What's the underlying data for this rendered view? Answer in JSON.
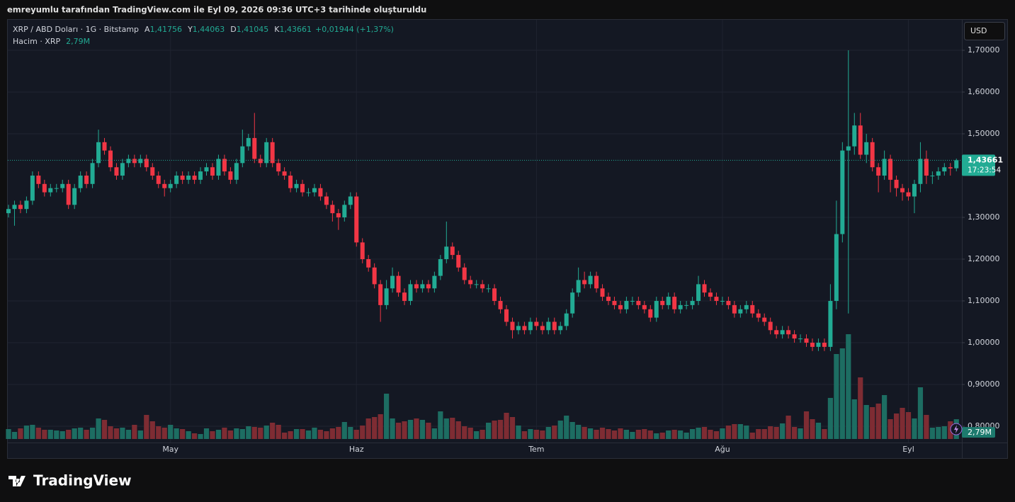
{
  "caption": "emreyumlu tarafından TradingView.com ile Eyl 09, 2026 09:36 UTC+3 tarihinde oluşturuldu",
  "brand": "TradingView",
  "currency_button": "USD",
  "chart_data": {
    "type": "candlestick",
    "title": "XRP / ABD Doları · 1G · Bitstamp",
    "ohlc_legend": [
      {
        "key": "A",
        "label": "1,41756"
      },
      {
        "key": "Y",
        "label": "1,44063"
      },
      {
        "key": "D",
        "label": "1,41045"
      },
      {
        "key": "K",
        "label": "1,43661"
      }
    ],
    "change_label": "+0,01944 (+1,37%)",
    "volume_title": "Hacim · XRP",
    "volume_label": "2,79M",
    "colors": {
      "up": "#22ab94",
      "down": "#f23645",
      "up_volume": "#1d6d62",
      "down_volume": "#7e2c33"
    },
    "categories": [
      null,
      null,
      null,
      null,
      null,
      null,
      null,
      null,
      null,
      null,
      null,
      null,
      null,
      null,
      null,
      null,
      null,
      null,
      null,
      null,
      null,
      null,
      null,
      null,
      null,
      null,
      null,
      "May",
      null,
      null,
      null,
      null,
      null,
      null,
      null,
      null,
      null,
      null,
      null,
      null,
      null,
      null,
      null,
      null,
      null,
      null,
      null,
      null,
      null,
      null,
      null,
      null,
      null,
      null,
      null,
      null,
      null,
      null,
      "Haz",
      null,
      null,
      null,
      null,
      null,
      null,
      null,
      null,
      null,
      null,
      null,
      null,
      null,
      null,
      null,
      null,
      null,
      null,
      null,
      null,
      null,
      null,
      null,
      null,
      null,
      null,
      null,
      null,
      null,
      "Tem",
      null,
      null,
      null,
      null,
      null,
      null,
      null,
      null,
      null,
      null,
      null,
      null,
      null,
      null,
      null,
      null,
      null,
      null,
      null,
      null,
      null,
      null,
      null,
      null,
      null,
      null,
      null,
      null,
      null,
      null,
      "Ağu",
      null,
      null,
      null,
      null,
      null,
      null,
      null,
      null,
      null,
      null,
      null,
      null,
      null,
      null,
      null,
      null,
      null,
      null,
      null,
      null,
      null,
      null,
      null,
      null,
      null,
      null,
      null,
      null,
      null,
      null,
      "Eyl",
      null,
      null,
      null,
      null,
      null,
      null,
      null,
      null
    ],
    "open": [
      1.31,
      1.32,
      1.33,
      1.32,
      1.34,
      1.4,
      1.38,
      1.36,
      1.37,
      1.37,
      1.38,
      1.33,
      1.37,
      1.4,
      1.38,
      1.43,
      1.48,
      1.46,
      1.42,
      1.4,
      1.43,
      1.44,
      1.43,
      1.44,
      1.42,
      1.4,
      1.38,
      1.37,
      1.38,
      1.4,
      1.39,
      1.4,
      1.39,
      1.41,
      1.42,
      1.4,
      1.44,
      1.41,
      1.39,
      1.43,
      1.47,
      1.49,
      1.44,
      1.43,
      1.48,
      1.43,
      1.41,
      1.4,
      1.37,
      1.38,
      1.36,
      1.36,
      1.37,
      1.35,
      1.33,
      1.31,
      1.3,
      1.33,
      1.35,
      1.24,
      1.2,
      1.18,
      1.14,
      1.09,
      1.13,
      1.16,
      1.12,
      1.1,
      1.14,
      1.13,
      1.14,
      1.13,
      1.16,
      1.2,
      1.23,
      1.21,
      1.18,
      1.15,
      1.14,
      1.14,
      1.13,
      1.13,
      1.1,
      1.08,
      1.05,
      1.03,
      1.04,
      1.03,
      1.05,
      1.04,
      1.03,
      1.05,
      1.03,
      1.04,
      1.07,
      1.12,
      1.15,
      1.14,
      1.16,
      1.13,
      1.11,
      1.1,
      1.09,
      1.08,
      1.1,
      1.1,
      1.09,
      1.08,
      1.06,
      1.1,
      1.09,
      1.11,
      1.08,
      1.09,
      1.09,
      1.1,
      1.14,
      1.12,
      1.11,
      1.1,
      1.1,
      1.09,
      1.07,
      1.08,
      1.09,
      1.07,
      1.06,
      1.05,
      1.03,
      1.02,
      1.03,
      1.02,
      1.01,
      1.01,
      1.0,
      0.99,
      1.0,
      0.99,
      1.1,
      1.26,
      1.46,
      1.47,
      1.52,
      1.45,
      1.48,
      1.42,
      1.4,
      1.44,
      1.39,
      1.37,
      1.36,
      1.35,
      1.38,
      1.44,
      1.4,
      1.4,
      1.41,
      1.42,
      1.41756
    ],
    "high": [
      1.33,
      1.34,
      1.34,
      1.35,
      1.41,
      1.41,
      1.39,
      1.38,
      1.38,
      1.39,
      1.39,
      1.38,
      1.41,
      1.41,
      1.44,
      1.51,
      1.49,
      1.47,
      1.43,
      1.44,
      1.45,
      1.45,
      1.45,
      1.45,
      1.43,
      1.41,
      1.39,
      1.39,
      1.41,
      1.41,
      1.41,
      1.41,
      1.42,
      1.43,
      1.43,
      1.45,
      1.45,
      1.42,
      1.44,
      1.51,
      1.5,
      1.55,
      1.45,
      1.49,
      1.49,
      1.44,
      1.42,
      1.41,
      1.39,
      1.39,
      1.37,
      1.38,
      1.38,
      1.36,
      1.34,
      1.32,
      1.34,
      1.36,
      1.36,
      1.25,
      1.21,
      1.19,
      1.15,
      1.15,
      1.18,
      1.17,
      1.13,
      1.15,
      1.15,
      1.15,
      1.15,
      1.17,
      1.21,
      1.29,
      1.24,
      1.22,
      1.19,
      1.16,
      1.15,
      1.15,
      1.14,
      1.14,
      1.11,
      1.09,
      1.06,
      1.05,
      1.05,
      1.06,
      1.06,
      1.05,
      1.06,
      1.06,
      1.05,
      1.08,
      1.13,
      1.18,
      1.17,
      1.17,
      1.17,
      1.14,
      1.12,
      1.11,
      1.1,
      1.11,
      1.11,
      1.11,
      1.1,
      1.09,
      1.11,
      1.11,
      1.12,
      1.12,
      1.1,
      1.1,
      1.11,
      1.16,
      1.15,
      1.13,
      1.12,
      1.11,
      1.11,
      1.1,
      1.09,
      1.1,
      1.1,
      1.08,
      1.07,
      1.06,
      1.04,
      1.04,
      1.04,
      1.03,
      1.02,
      1.02,
      1.01,
      1.01,
      1.01,
      1.14,
      1.34,
      1.48,
      1.7,
      1.55,
      1.55,
      1.5,
      1.49,
      1.43,
      1.46,
      1.45,
      1.4,
      1.38,
      1.37,
      1.39,
      1.48,
      1.46,
      1.41,
      1.42,
      1.43,
      1.43,
      1.44063
    ],
    "low": [
      1.3,
      1.28,
      1.31,
      1.31,
      1.33,
      1.37,
      1.35,
      1.35,
      1.36,
      1.36,
      1.32,
      1.32,
      1.36,
      1.37,
      1.37,
      1.42,
      1.45,
      1.41,
      1.39,
      1.39,
      1.42,
      1.42,
      1.42,
      1.41,
      1.39,
      1.37,
      1.35,
      1.36,
      1.37,
      1.38,
      1.38,
      1.38,
      1.38,
      1.4,
      1.39,
      1.39,
      1.4,
      1.38,
      1.38,
      1.42,
      1.46,
      1.43,
      1.42,
      1.42,
      1.42,
      1.4,
      1.39,
      1.36,
      1.36,
      1.35,
      1.35,
      1.35,
      1.34,
      1.32,
      1.29,
      1.27,
      1.29,
      1.32,
      1.23,
      1.19,
      1.17,
      1.13,
      1.05,
      1.08,
      1.12,
      1.11,
      1.09,
      1.09,
      1.12,
      1.12,
      1.12,
      1.12,
      1.15,
      1.19,
      1.2,
      1.17,
      1.14,
      1.13,
      1.13,
      1.12,
      1.12,
      1.09,
      1.07,
      1.04,
      1.01,
      1.02,
      1.02,
      1.02,
      1.03,
      1.02,
      1.02,
      1.02,
      1.02,
      1.03,
      1.06,
      1.11,
      1.13,
      1.13,
      1.12,
      1.1,
      1.09,
      1.08,
      1.07,
      1.07,
      1.09,
      1.08,
      1.07,
      1.05,
      1.05,
      1.08,
      1.08,
      1.07,
      1.07,
      1.08,
      1.08,
      1.09,
      1.11,
      1.1,
      1.09,
      1.09,
      1.08,
      1.06,
      1.06,
      1.07,
      1.06,
      1.05,
      1.04,
      1.02,
      1.01,
      1.01,
      1.01,
      1.0,
      1.0,
      0.99,
      0.98,
      0.98,
      0.98,
      0.98,
      1.08,
      1.24,
      1.07,
      1.45,
      1.44,
      1.43,
      1.41,
      1.36,
      1.39,
      1.36,
      1.35,
      1.34,
      1.34,
      1.31,
      1.36,
      1.38,
      1.38,
      1.39,
      1.4,
      1.4,
      1.41045
    ],
    "close": [
      1.32,
      1.33,
      1.32,
      1.34,
      1.4,
      1.38,
      1.36,
      1.37,
      1.37,
      1.38,
      1.33,
      1.37,
      1.4,
      1.38,
      1.43,
      1.48,
      1.46,
      1.42,
      1.4,
      1.43,
      1.44,
      1.43,
      1.44,
      1.42,
      1.4,
      1.38,
      1.37,
      1.38,
      1.4,
      1.39,
      1.4,
      1.39,
      1.41,
      1.42,
      1.4,
      1.44,
      1.41,
      1.39,
      1.43,
      1.47,
      1.49,
      1.44,
      1.43,
      1.48,
      1.43,
      1.41,
      1.4,
      1.37,
      1.38,
      1.36,
      1.36,
      1.37,
      1.35,
      1.33,
      1.31,
      1.3,
      1.33,
      1.35,
      1.24,
      1.2,
      1.18,
      1.14,
      1.09,
      1.13,
      1.16,
      1.12,
      1.1,
      1.14,
      1.13,
      1.14,
      1.13,
      1.16,
      1.2,
      1.23,
      1.21,
      1.18,
      1.15,
      1.14,
      1.14,
      1.13,
      1.13,
      1.1,
      1.08,
      1.05,
      1.03,
      1.04,
      1.03,
      1.05,
      1.04,
      1.03,
      1.05,
      1.03,
      1.04,
      1.07,
      1.12,
      1.15,
      1.14,
      1.16,
      1.13,
      1.11,
      1.1,
      1.09,
      1.08,
      1.1,
      1.1,
      1.09,
      1.08,
      1.06,
      1.1,
      1.09,
      1.11,
      1.08,
      1.09,
      1.09,
      1.1,
      1.14,
      1.12,
      1.11,
      1.1,
      1.1,
      1.09,
      1.07,
      1.08,
      1.09,
      1.07,
      1.06,
      1.05,
      1.03,
      1.02,
      1.03,
      1.02,
      1.01,
      1.01,
      1.0,
      0.99,
      1.0,
      0.99,
      1.1,
      1.26,
      1.46,
      1.47,
      1.52,
      1.45,
      1.48,
      1.42,
      1.4,
      1.44,
      1.39,
      1.37,
      1.36,
      1.35,
      1.38,
      1.44,
      1.4,
      1.4,
      1.41,
      1.42,
      1.41717,
      1.43661
    ],
    "volume": [
      1.4,
      1.0,
      1.5,
      1.9,
      2.0,
      1.6,
      1.3,
      1.3,
      1.2,
      1.1,
      1.3,
      1.5,
      1.6,
      1.3,
      1.6,
      2.9,
      2.7,
      1.8,
      1.5,
      1.6,
      1.3,
      2.0,
      1.2,
      3.4,
      2.5,
      1.8,
      1.6,
      2.0,
      1.5,
      1.4,
      1.1,
      0.8,
      0.7,
      1.5,
      1.1,
      1.3,
      1.6,
      1.2,
      1.5,
      1.4,
      1.8,
      1.7,
      1.6,
      1.9,
      2.3,
      2.0,
      0.9,
      1.1,
      1.4,
      1.4,
      1.2,
      1.6,
      1.3,
      1.1,
      1.5,
      1.7,
      2.4,
      1.7,
      1.3,
      1.9,
      2.9,
      3.1,
      3.5,
      6.4,
      2.9,
      2.3,
      2.5,
      2.7,
      2.9,
      2.7,
      2.3,
      1.5,
      3.9,
      2.9,
      3.0,
      2.5,
      1.8,
      1.6,
      1.1,
      1.3,
      2.3,
      2.6,
      2.7,
      3.7,
      3.1,
      1.9,
      1.1,
      1.4,
      1.3,
      1.2,
      1.7,
      1.9,
      2.6,
      3.3,
      2.4,
      2.0,
      1.7,
      1.5,
      1.3,
      1.6,
      1.4,
      1.2,
      1.5,
      1.3,
      1.0,
      1.3,
      1.4,
      1.2,
      0.8,
      0.9,
      1.2,
      1.3,
      1.2,
      0.9,
      1.4,
      1.6,
      1.7,
      1.3,
      1.1,
      1.5,
      1.9,
      2.1,
      2.1,
      1.9,
      0.9,
      1.4,
      1.4,
      1.8,
      1.7,
      2.2,
      3.3,
      1.7,
      1.5,
      3.9,
      2.8,
      2.3,
      1.4,
      5.8,
      12.0,
      12.8,
      14.8,
      5.6,
      8.7,
      4.8,
      4.5,
      5.0,
      6.2,
      2.8,
      3.6,
      4.4,
      3.8,
      2.9,
      7.3,
      3.4,
      1.6,
      1.7,
      1.8,
      2.5,
      2.79
    ],
    "ylim": [
      0.761,
      1.7746
    ],
    "yticks": [
      {
        "value": 0.8,
        "label": "0,80000"
      },
      {
        "value": 0.9,
        "label": "0,90000"
      },
      {
        "value": 1.0,
        "label": "1,00000"
      },
      {
        "value": 1.1,
        "label": "1,10000"
      },
      {
        "value": 1.2,
        "label": "1,20000"
      },
      {
        "value": 1.3,
        "label": "1,30000"
      },
      {
        "value": 1.5,
        "label": "1,50000"
      },
      {
        "value": 1.6,
        "label": "1,60000"
      },
      {
        "value": 1.7,
        "label": "1,70000"
      }
    ],
    "volume_ylim": [
      0,
      59.3
    ],
    "last_price": {
      "value": 1.43661,
      "label": "1,43661",
      "countdown": "17:23:54"
    },
    "grid": true
  }
}
